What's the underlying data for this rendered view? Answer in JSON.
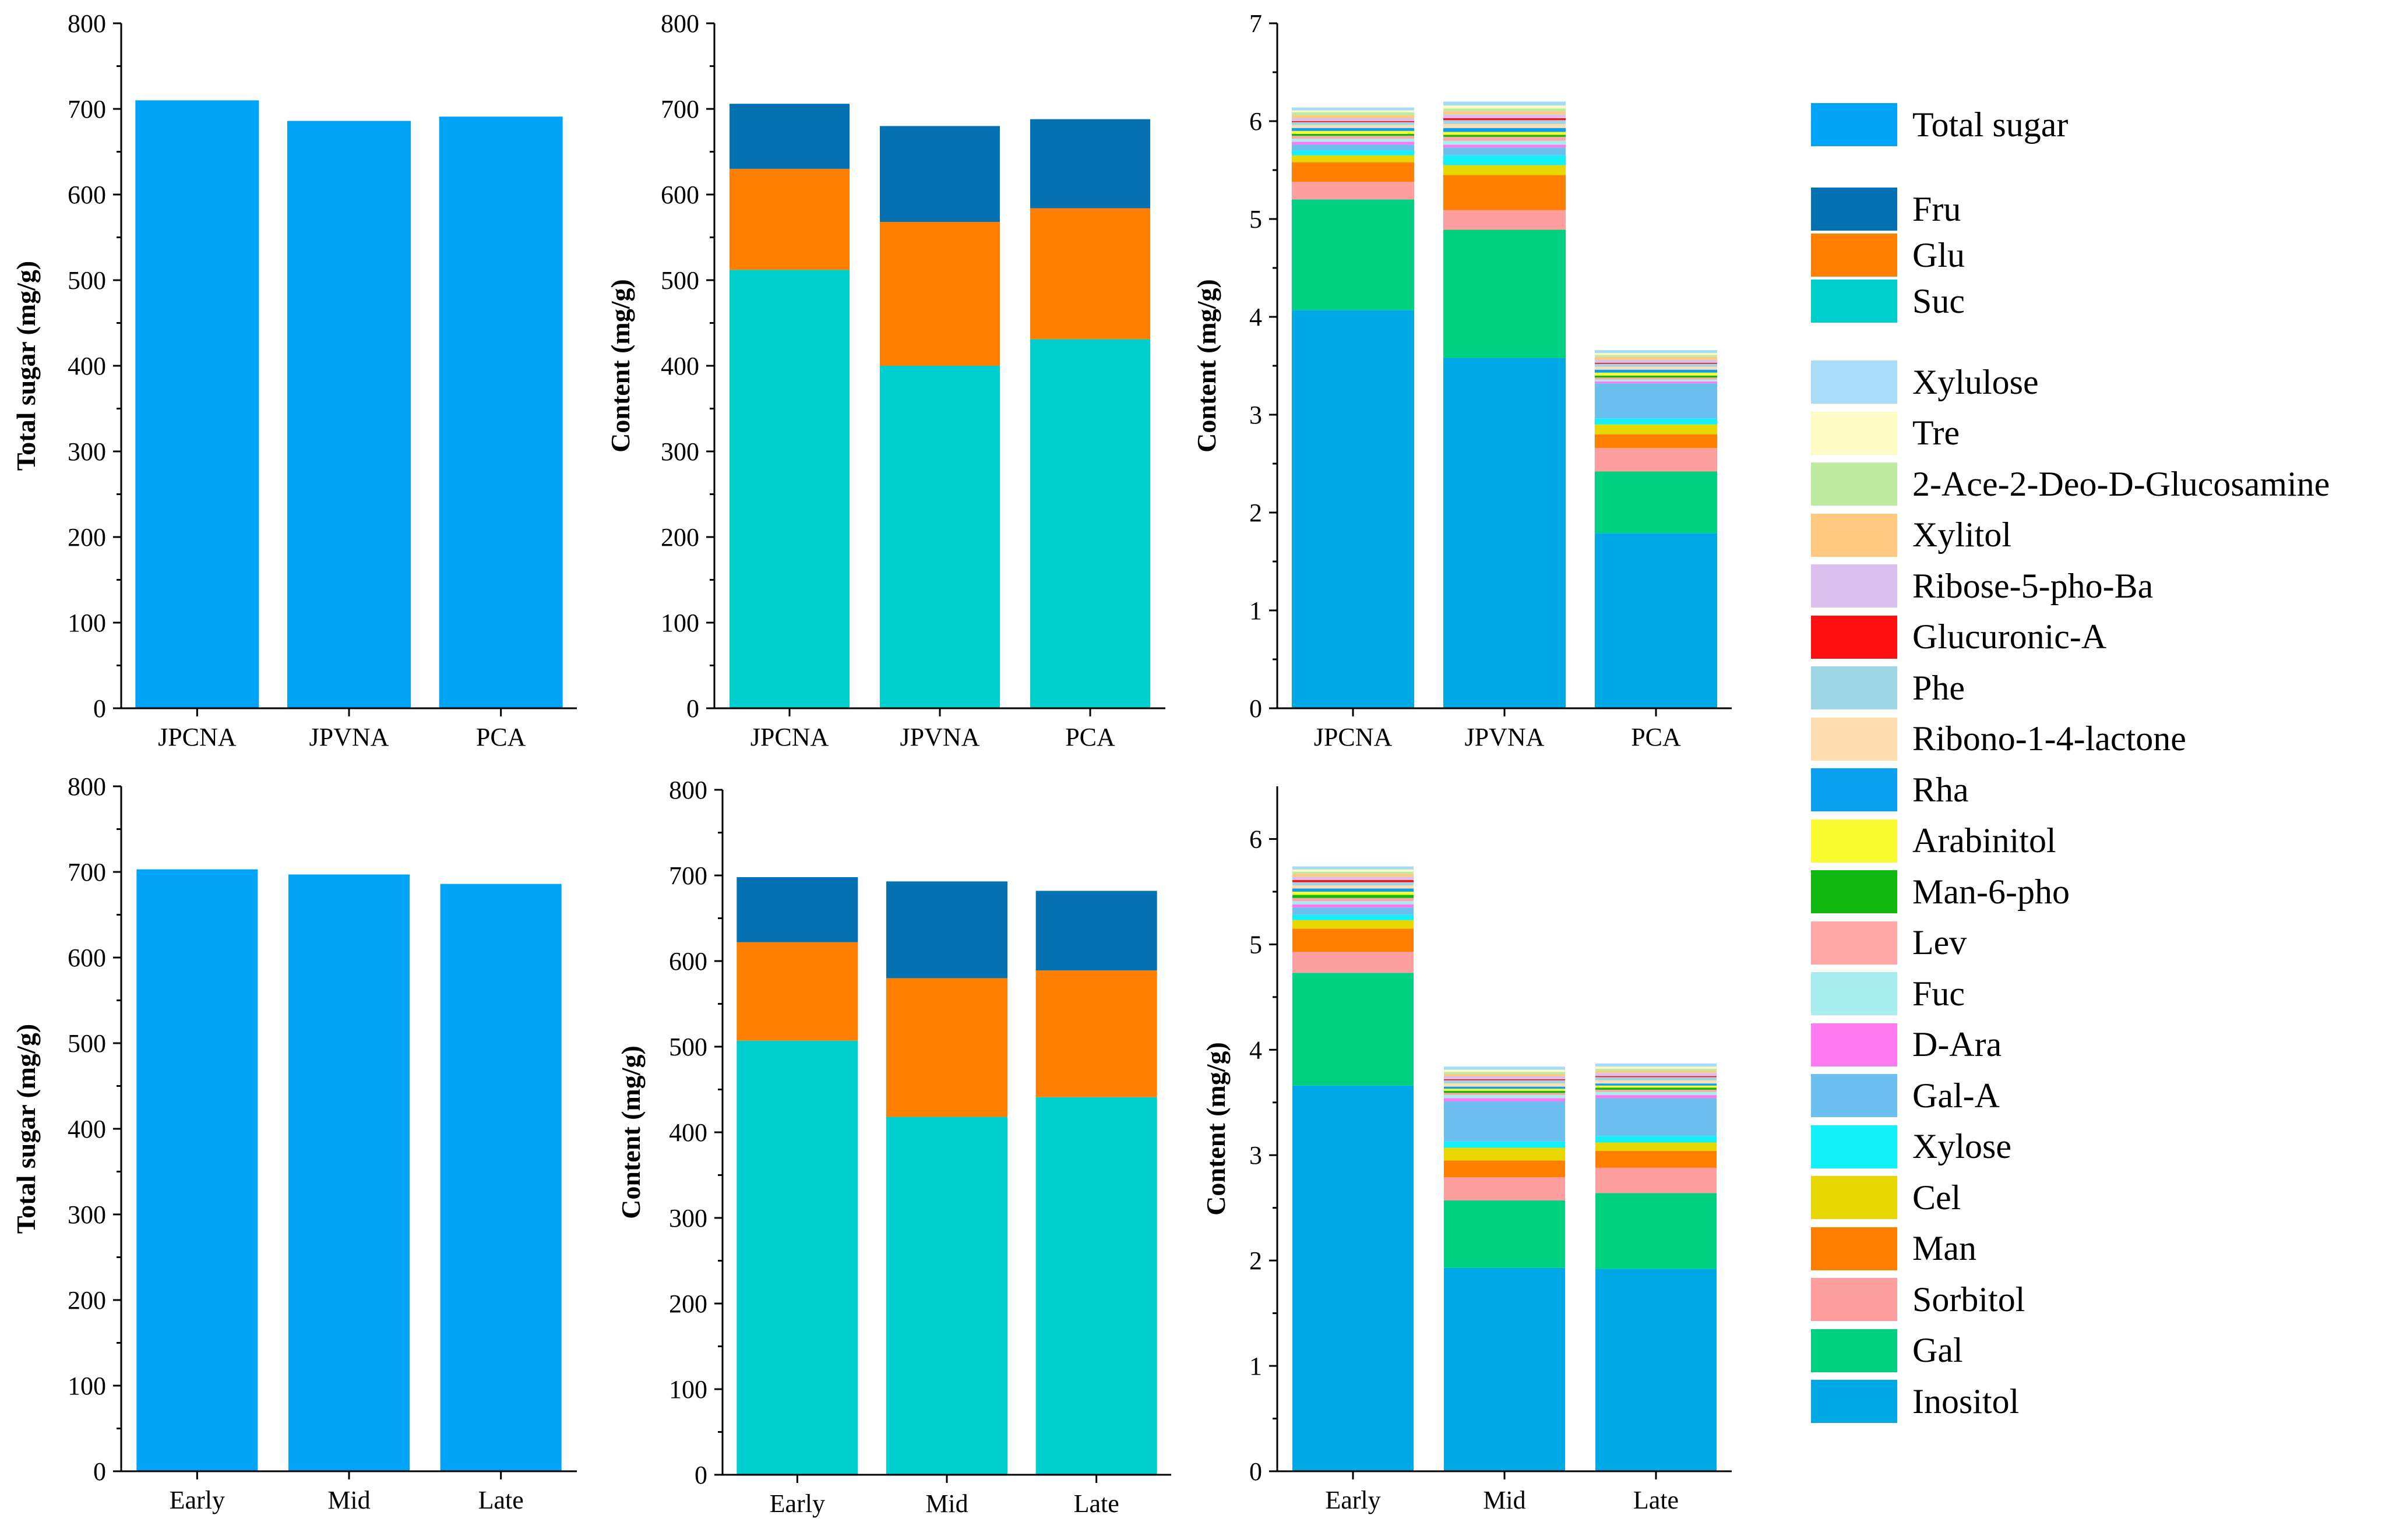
{
  "colors": {
    "total_sugar": "#00A3F5",
    "Fru": "#0472B2",
    "Glu": "#FF8000",
    "Suc": "#00CFCF",
    "Xylulose": "#A8DCF6",
    "Tre": "#FFFBC4",
    "2-Ace-2-Deo-D-Glucosamine": "#BEEAA2",
    "Xylitol": "#FFC980",
    "Ribose-5-pho-Ba": "#D9C0EE",
    "Glucuronic-A": "#FF1010",
    "Phe": "#9FD6E6",
    "Ribono-1-4-lactone": "#FFDDB0",
    "Rha": "#0AA0F0",
    "Arabinitol": "#FAFA30",
    "Man-6-pho": "#10B810",
    "Lev": "#FFA6A6",
    "Fuc": "#A8EEF0",
    "D-Ara": "#FF7AF0",
    "Gal-A": "#6CC0F0",
    "Xylose": "#14F0FA",
    "Cel": "#E6D800",
    "Man": "#FF8000",
    "Sorbitol": "#FF9E9E",
    "Gal": "#00D080",
    "Inositol": "#00A8E6"
  },
  "legend": {
    "total": [
      "Total sugar"
    ],
    "major": [
      "Fru",
      "Glu",
      "Suc"
    ],
    "minor": [
      "Xylulose",
      "Tre",
      "2-Ace-2-Deo-D-Glucosamine",
      "Xylitol",
      "Ribose-5-pho-Ba",
      "Glucuronic-A",
      "Phe",
      "Ribono-1-4-lactone",
      "Rha",
      "Arabinitol",
      "Man-6-pho",
      "Lev",
      "Fuc",
      "D-Ara",
      "Gal-A",
      "Xylose",
      "Cel",
      "Man",
      "Sorbitol",
      "Gal",
      "Inositol"
    ]
  },
  "chart_data": [
    {
      "id": "total-variety",
      "type": "bar",
      "ylabel": "Total sugar (mg/g)",
      "ylim": [
        0,
        800
      ],
      "yticks": [
        0,
        100,
        200,
        300,
        400,
        500,
        600,
        700,
        800
      ],
      "categories": [
        "JPCNA",
        "JPVNA",
        "PCA"
      ],
      "series": [
        {
          "name": "Total sugar",
          "values": [
            710,
            686,
            691
          ]
        }
      ]
    },
    {
      "id": "content-variety",
      "type": "bar",
      "stacked": true,
      "ylabel": "Content (mg/g)",
      "ylim": [
        0,
        800
      ],
      "yticks": [
        0,
        100,
        200,
        300,
        400,
        500,
        600,
        700,
        800
      ],
      "categories": [
        "JPCNA",
        "JPVNA",
        "PCA"
      ],
      "series": [
        {
          "name": "Suc",
          "values": [
            512,
            400,
            431
          ]
        },
        {
          "name": "Glu",
          "values": [
            118,
            168,
            153
          ]
        },
        {
          "name": "Fru",
          "values": [
            76,
            112,
            104
          ]
        }
      ]
    },
    {
      "id": "minor-variety",
      "type": "bar",
      "stacked": true,
      "ylabel": "Content (mg/g)",
      "ylim": [
        0,
        7
      ],
      "yticks": [
        0,
        1,
        2,
        3,
        4,
        5,
        6,
        7
      ],
      "categories": [
        "JPCNA",
        "JPVNA",
        "PCA"
      ],
      "series": [
        {
          "name": "Inositol",
          "values": [
            4.07,
            3.58,
            1.79
          ]
        },
        {
          "name": "Gal",
          "values": [
            1.13,
            1.31,
            0.63
          ]
        },
        {
          "name": "Sorbitol",
          "values": [
            0.18,
            0.2,
            0.24
          ]
        },
        {
          "name": "Man",
          "values": [
            0.2,
            0.36,
            0.14
          ]
        },
        {
          "name": "Cel",
          "values": [
            0.07,
            0.1,
            0.1
          ]
        },
        {
          "name": "Xylose",
          "values": [
            0.05,
            0.1,
            0.06
          ]
        },
        {
          "name": "Gal-A",
          "values": [
            0.06,
            0.08,
            0.36
          ]
        },
        {
          "name": "D-Ara",
          "values": [
            0.03,
            0.03,
            0.02
          ]
        },
        {
          "name": "Fuc",
          "values": [
            0.03,
            0.04,
            0.02
          ]
        },
        {
          "name": "Lev",
          "values": [
            0.03,
            0.04,
            0.02
          ]
        },
        {
          "name": "Man-6-pho",
          "values": [
            0.02,
            0.02,
            0.02
          ]
        },
        {
          "name": "Arabinitol",
          "values": [
            0.03,
            0.03,
            0.03
          ]
        },
        {
          "name": "Rha",
          "values": [
            0.03,
            0.04,
            0.03
          ]
        },
        {
          "name": "Ribono-1-4-lactone",
          "values": [
            0.03,
            0.04,
            0.03
          ]
        },
        {
          "name": "Phe",
          "values": [
            0.03,
            0.04,
            0.03
          ]
        },
        {
          "name": "Glucuronic-A",
          "values": [
            0.01,
            0.02,
            0.01
          ]
        },
        {
          "name": "Ribose-5-pho-Ba",
          "values": [
            0.03,
            0.04,
            0.03
          ]
        },
        {
          "name": "Xylitol",
          "values": [
            0.03,
            0.03,
            0.03
          ]
        },
        {
          "name": "2-Ace-2-Deo-D-Glucosamine",
          "values": [
            0.03,
            0.03,
            0.02
          ]
        },
        {
          "name": "Tre",
          "values": [
            0.02,
            0.03,
            0.02
          ]
        },
        {
          "name": "Xylulose",
          "values": [
            0.03,
            0.04,
            0.03
          ]
        }
      ]
    },
    {
      "id": "total-stage",
      "type": "bar",
      "ylabel": "Total sugar (mg/g)",
      "ylim": [
        0,
        800
      ],
      "yticks": [
        0,
        100,
        200,
        300,
        400,
        500,
        600,
        700,
        800
      ],
      "categories": [
        "Early",
        "Mid",
        "Late"
      ],
      "series": [
        {
          "name": "Total sugar",
          "values": [
            703,
            697,
            686
          ]
        }
      ]
    },
    {
      "id": "content-stage",
      "type": "bar",
      "stacked": true,
      "ylabel": "Content (mg/g)",
      "ylim": [
        0,
        800
      ],
      "yticks": [
        0,
        100,
        200,
        300,
        400,
        500,
        600,
        700,
        800
      ],
      "categories": [
        "Early",
        "Mid",
        "Late"
      ],
      "series": [
        {
          "name": "Suc",
          "values": [
            507,
            418,
            441
          ]
        },
        {
          "name": "Glu",
          "values": [
            115,
            162,
            148
          ]
        },
        {
          "name": "Fru",
          "values": [
            76,
            113,
            93
          ]
        }
      ]
    },
    {
      "id": "minor-stage",
      "type": "bar",
      "stacked": true,
      "ylabel": "Content (mg/g)",
      "ylim": [
        0,
        6.5
      ],
      "yticks": [
        0,
        1,
        2,
        3,
        4,
        5,
        6
      ],
      "categories": [
        "Early",
        "Mid",
        "Late"
      ],
      "series": [
        {
          "name": "Inositol",
          "values": [
            3.66,
            1.93,
            1.92
          ]
        },
        {
          "name": "Gal",
          "values": [
            1.07,
            0.64,
            0.72
          ]
        },
        {
          "name": "Sorbitol",
          "values": [
            0.2,
            0.22,
            0.24
          ]
        },
        {
          "name": "Man",
          "values": [
            0.22,
            0.16,
            0.16
          ]
        },
        {
          "name": "Cel",
          "values": [
            0.08,
            0.12,
            0.08
          ]
        },
        {
          "name": "Xylose",
          "values": [
            0.05,
            0.06,
            0.06
          ]
        },
        {
          "name": "Gal-A",
          "values": [
            0.07,
            0.38,
            0.36
          ]
        },
        {
          "name": "D-Ara",
          "values": [
            0.03,
            0.03,
            0.03
          ]
        },
        {
          "name": "Fuc",
          "values": [
            0.03,
            0.03,
            0.03
          ]
        },
        {
          "name": "Lev",
          "values": [
            0.03,
            0.02,
            0.02
          ]
        },
        {
          "name": "Man-6-pho",
          "values": [
            0.03,
            0.02,
            0.02
          ]
        },
        {
          "name": "Arabinitol",
          "values": [
            0.03,
            0.02,
            0.02
          ]
        },
        {
          "name": "Rha",
          "values": [
            0.03,
            0.02,
            0.02
          ]
        },
        {
          "name": "Ribono-1-4-lactone",
          "values": [
            0.03,
            0.03,
            0.03
          ]
        },
        {
          "name": "Phe",
          "values": [
            0.03,
            0.03,
            0.03
          ]
        },
        {
          "name": "Glucuronic-A",
          "values": [
            0.02,
            0.01,
            0.01
          ]
        },
        {
          "name": "Ribose-5-pho-Ba",
          "values": [
            0.03,
            0.03,
            0.03
          ]
        },
        {
          "name": "Xylitol",
          "values": [
            0.03,
            0.02,
            0.02
          ]
        },
        {
          "name": "2-Ace-2-Deo-D-Glucosamine",
          "values": [
            0.02,
            0.02,
            0.02
          ]
        },
        {
          "name": "Tre",
          "values": [
            0.02,
            0.02,
            0.02
          ]
        },
        {
          "name": "Xylulose",
          "values": [
            0.03,
            0.03,
            0.03
          ]
        }
      ]
    }
  ]
}
